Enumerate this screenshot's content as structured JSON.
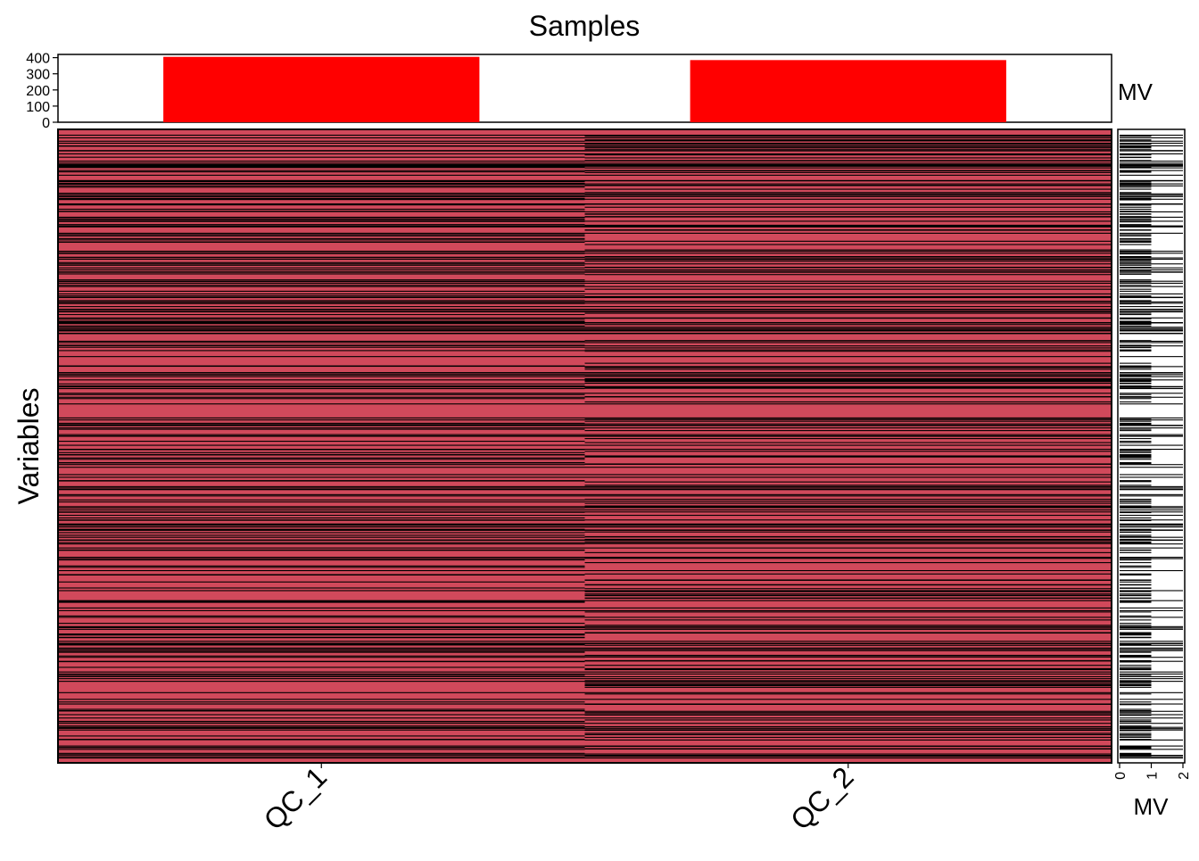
{
  "chart_data": {
    "type": "heatmap",
    "title": "Samples",
    "ylabel": "Variables",
    "samples": [
      "QC_1",
      "QC_2"
    ],
    "colors": {
      "present": "#D1495B",
      "missing": "#000000",
      "top_bar": "#FF0000",
      "frame": "#000000"
    },
    "top_bar": {
      "label": "MV",
      "values": [
        405,
        385
      ],
      "ylim": [
        0,
        420
      ],
      "ticks": [
        "0",
        "100",
        "200",
        "300",
        "400"
      ],
      "tick_values": [
        0,
        100,
        200,
        300,
        400
      ]
    },
    "right_bar": {
      "label": "MV",
      "xlim": [
        0,
        2
      ],
      "ticks": [
        "0",
        "1",
        "2"
      ],
      "tick_values": [
        0,
        1,
        2
      ],
      "approx_missing_fraction_by_count": {
        "0": 0.55,
        "1": 0.25,
        "2": 0.2
      }
    },
    "heatmap": {
      "approx_variable_count": 950,
      "approx_missing_fraction": [
        0.43,
        0.41
      ],
      "note_pattern": "pseudo-random reconstruction of missing-value stripes"
    }
  }
}
